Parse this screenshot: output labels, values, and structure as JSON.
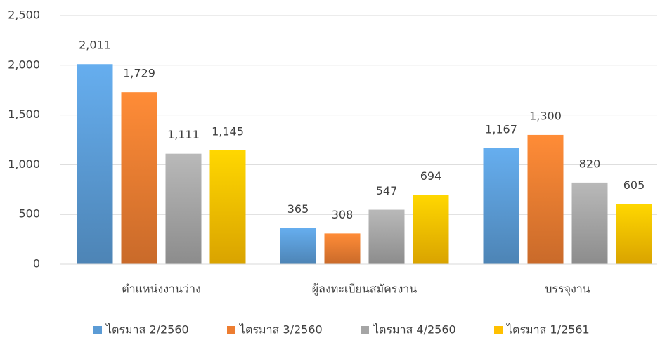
{
  "chart_data": {
    "type": "bar",
    "categories": [
      "ตำแหน่งงานว่าง",
      "ผู้ลงทะเบียนสมัครงาน",
      "บรรจุงาน"
    ],
    "series": [
      {
        "name": "ไตรมาส 2/2560",
        "color": "#5b9bd5",
        "values": [
          2011,
          365,
          1167
        ],
        "value_labels": [
          "2,011",
          "365",
          "1,167"
        ]
      },
      {
        "name": "ไตรมาส 3/2560",
        "color": "#ed7d31",
        "values": [
          1729,
          308,
          1300
        ],
        "value_labels": [
          "1,729",
          "308",
          "1,300"
        ]
      },
      {
        "name": "ไตรมาส 4/2560",
        "color": "#a5a5a5",
        "values": [
          1111,
          547,
          820
        ],
        "value_labels": [
          "1,111",
          "547",
          "820"
        ]
      },
      {
        "name": "ไตรมาส 1/2561",
        "color": "#ffc000",
        "values": [
          1145,
          694,
          605
        ],
        "value_labels": [
          "1,145",
          "694",
          "605"
        ]
      }
    ],
    "ylim": [
      0,
      2500
    ],
    "yticks": [
      0,
      500,
      {
        "value": 1000,
        "label": "1,000"
      },
      {
        "value": 1500,
        "label": "1,500"
      },
      {
        "value": 2000,
        "label": "2,000"
      },
      {
        "value": 2500,
        "label": "2,500"
      }
    ],
    "grid": true,
    "legend": "bottom"
  }
}
